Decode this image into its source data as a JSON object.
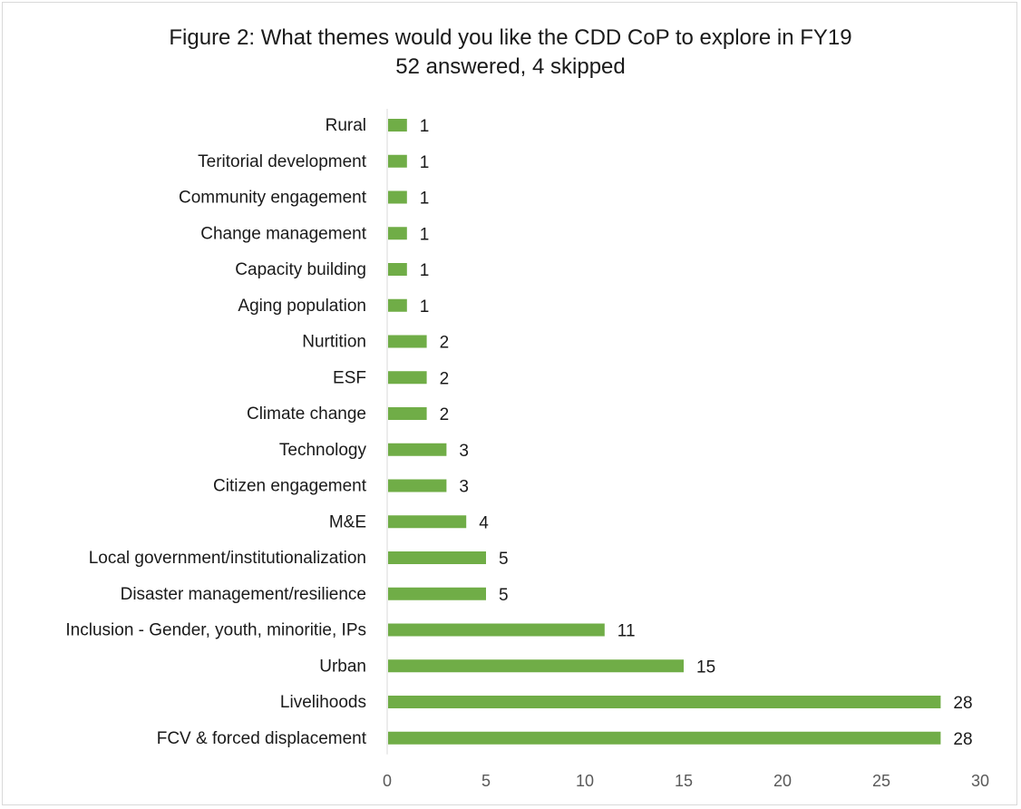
{
  "chart_data": {
    "type": "bar",
    "orientation": "horizontal",
    "title": "Figure 2: What themes would you like the CDD CoP to explore in FY19",
    "subtitle": "52 answered, 4 skipped",
    "categories": [
      "Rural",
      "Teritorial development",
      "Community engagement",
      "Change management",
      "Capacity building",
      "Aging population",
      "Nurtition",
      "ESF",
      "Climate change",
      "Technology",
      "Citizen engagement",
      "M&E",
      "Local government/institutionalization",
      "Disaster management/resilience",
      "Inclusion - Gender, youth, minoritie, IPs",
      "Urban",
      "Livelihoods",
      "FCV & forced displacement"
    ],
    "values": [
      1,
      1,
      1,
      1,
      1,
      1,
      2,
      2,
      2,
      3,
      3,
      4,
      5,
      5,
      11,
      15,
      28,
      28
    ],
    "xlim": [
      0,
      30
    ],
    "xticks": [
      "0",
      "5",
      "10",
      "15",
      "20",
      "25",
      "30"
    ],
    "xlabel": "",
    "ylabel": "",
    "bar_color": "#70ad47",
    "data_labels": true,
    "grid": false,
    "legend": "none"
  }
}
